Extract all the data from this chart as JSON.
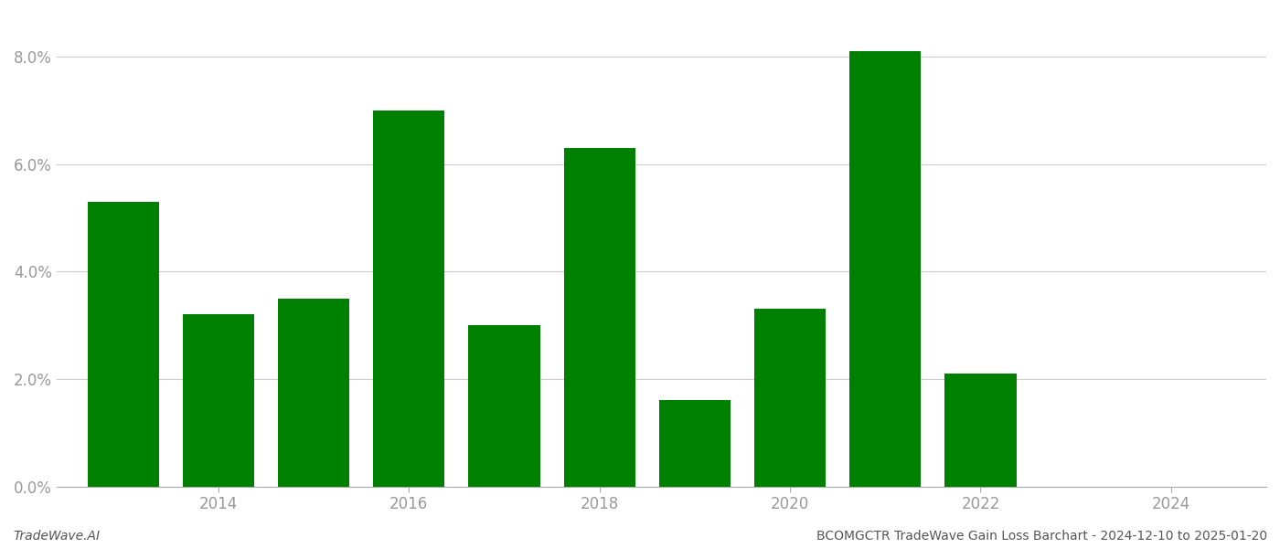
{
  "years": [
    2013,
    2014,
    2015,
    2016,
    2017,
    2018,
    2019,
    2020,
    2021,
    2022,
    2023
  ],
  "values": [
    0.053,
    0.032,
    0.035,
    0.07,
    0.03,
    0.063,
    0.016,
    0.033,
    0.081,
    0.021,
    0.0
  ],
  "bar_color": "#008000",
  "ylim": [
    0,
    0.088
  ],
  "yticks": [
    0.0,
    0.02,
    0.04,
    0.06,
    0.08
  ],
  "xtick_labels": [
    "2014",
    "2016",
    "2018",
    "2020",
    "2022",
    "2024"
  ],
  "xtick_positions": [
    2014,
    2016,
    2018,
    2020,
    2022,
    2024
  ],
  "xlim_left": 2012.3,
  "xlim_right": 2025.0,
  "footer_left": "TradeWave.AI",
  "footer_right": "BCOMGCTR TradeWave Gain Loss Barchart - 2024-12-10 to 2025-01-20",
  "background_color": "#ffffff",
  "grid_color": "#cccccc",
  "bar_width": 0.75,
  "tick_color": "#999999",
  "tick_fontsize": 12,
  "footer_fontsize": 10,
  "figsize": [
    14.0,
    6.0
  ],
  "dpi": 100
}
